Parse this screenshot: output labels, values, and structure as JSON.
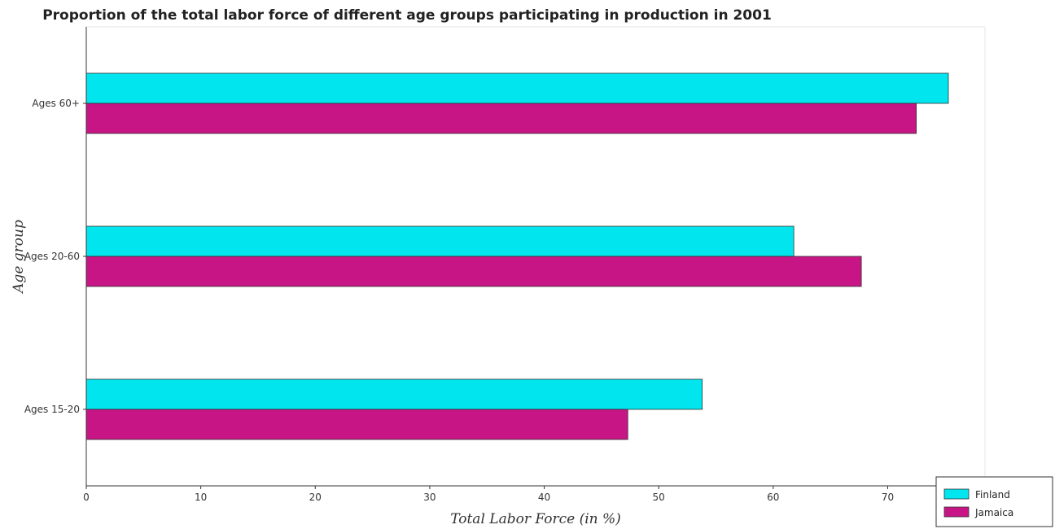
{
  "chart_data": {
    "type": "bar",
    "orientation": "horizontal",
    "title": "Proportion of the total labor force of different age groups participating in production in 2001",
    "xlabel": "Total Labor Force (in %)",
    "ylabel": "Age group",
    "categories": [
      "Ages 15-20",
      "Ages 20-60",
      "Ages 60+"
    ],
    "series": [
      {
        "name": "Finland",
        "color": "#00e5ee",
        "values": [
          53.8,
          61.8,
          75.3
        ]
      },
      {
        "name": "Jamaica",
        "color": "#c71585",
        "values": [
          47.3,
          67.7,
          72.5
        ]
      }
    ],
    "xlim": [
      0,
      78.5
    ],
    "xticks": [
      0,
      10,
      20,
      30,
      40,
      50,
      60,
      70
    ],
    "grid": false,
    "legend_position": "bottom-right"
  }
}
